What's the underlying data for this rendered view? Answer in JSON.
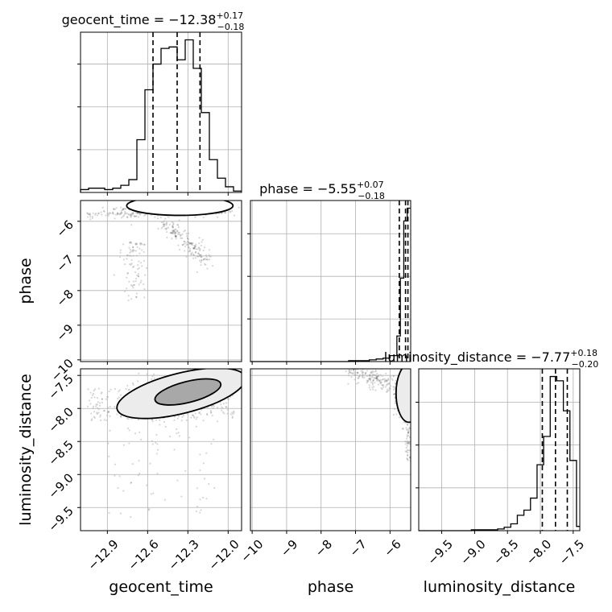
{
  "chart_data": {
    "type": "corner",
    "parameters": [
      "geocent_time",
      "phase",
      "luminosity_distance"
    ],
    "titles": [
      {
        "param": "geocent_time",
        "text": "geocent_time = −12.38",
        "plus": "+0.17",
        "minus": "−0.18"
      },
      {
        "param": "phase",
        "text": "phase = −5.55",
        "plus": "+0.07",
        "minus": "−0.18"
      },
      {
        "param": "luminosity_distance",
        "text": "luminosity_distance = −7.77",
        "plus": "+0.18",
        "minus": "−0.20"
      }
    ],
    "axes": {
      "geocent_time": {
        "range": [
          -13.1,
          -11.9
        ],
        "ticks": [
          -12.9,
          -12.6,
          -12.3,
          -12.0
        ],
        "tick_labels": [
          "−12.9",
          "−12.6",
          "−12.3",
          "−12.0"
        ]
      },
      "phase": {
        "range": [
          -10.05,
          -5.4
        ],
        "ticks": [
          -10,
          -9,
          -8,
          -7,
          -6
        ],
        "tick_labels": [
          "−10",
          "−9",
          "−8",
          "−7",
          "−6"
        ]
      },
      "luminosity_distance": {
        "range": [
          -9.85,
          -7.4
        ],
        "ticks": [
          -9.5,
          -9.0,
          -8.5,
          -8.0,
          -7.5
        ],
        "tick_labels": [
          "−9.5",
          "−9.0",
          "−8.5",
          "−8.0",
          "−7.5"
        ]
      }
    },
    "quantiles": {
      "geocent_time": [
        -12.56,
        -12.38,
        -12.21
      ],
      "phase": [
        -5.73,
        -5.55,
        -5.48
      ],
      "luminosity_distance": [
        -7.97,
        -7.77,
        -7.59
      ]
    },
    "histograms": {
      "geocent_time": {
        "edges": [
          -13.1,
          -13.04,
          -12.98,
          -12.92,
          -12.86,
          -12.8,
          -12.74,
          -12.68,
          -12.62,
          -12.56,
          -12.5,
          -12.44,
          -12.38,
          -12.32,
          -12.26,
          -12.2,
          -12.14,
          -12.08,
          -12.02,
          -11.96,
          -11.9
        ],
        "counts": [
          2,
          3,
          3,
          2,
          3,
          5,
          9,
          37,
          72,
          90,
          101,
          102,
          93,
          107,
          87,
          56,
          23,
          10,
          4,
          1
        ]
      },
      "phase": {
        "edges": [
          -10.05,
          -9.8,
          -9.6,
          -9.4,
          -9.2,
          -9.0,
          -8.8,
          -8.6,
          -8.4,
          -8.2,
          -8.0,
          -7.8,
          -7.6,
          -7.4,
          -7.2,
          -7.0,
          -6.8,
          -6.6,
          -6.4,
          -6.2,
          -6.0,
          -5.8,
          -5.7,
          -5.6,
          -5.5,
          -5.4
        ],
        "counts": [
          0,
          0,
          0,
          0,
          0,
          0,
          0,
          0,
          0,
          0,
          0,
          0,
          0,
          0,
          1,
          1,
          1,
          2,
          3,
          4,
          7,
          30,
          98,
          165,
          180
        ]
      },
      "luminosity_distance": {
        "edges": [
          -9.85,
          -9.75,
          -9.65,
          -9.55,
          -9.45,
          -9.35,
          -9.25,
          -9.15,
          -9.05,
          -8.95,
          -8.85,
          -8.75,
          -8.65,
          -8.55,
          -8.45,
          -8.35,
          -8.25,
          -8.15,
          -8.05,
          -7.95,
          -7.85,
          -7.75,
          -7.65,
          -7.55,
          -7.45,
          -7.4
        ],
        "counts": [
          0,
          0,
          0,
          0,
          0,
          0,
          0,
          0,
          1,
          1,
          1,
          1,
          2,
          4,
          8,
          18,
          24,
          38,
          77,
          110,
          180,
          175,
          140,
          82,
          5
        ]
      }
    },
    "contour_levels": [
      0.39,
      0.86
    ]
  }
}
